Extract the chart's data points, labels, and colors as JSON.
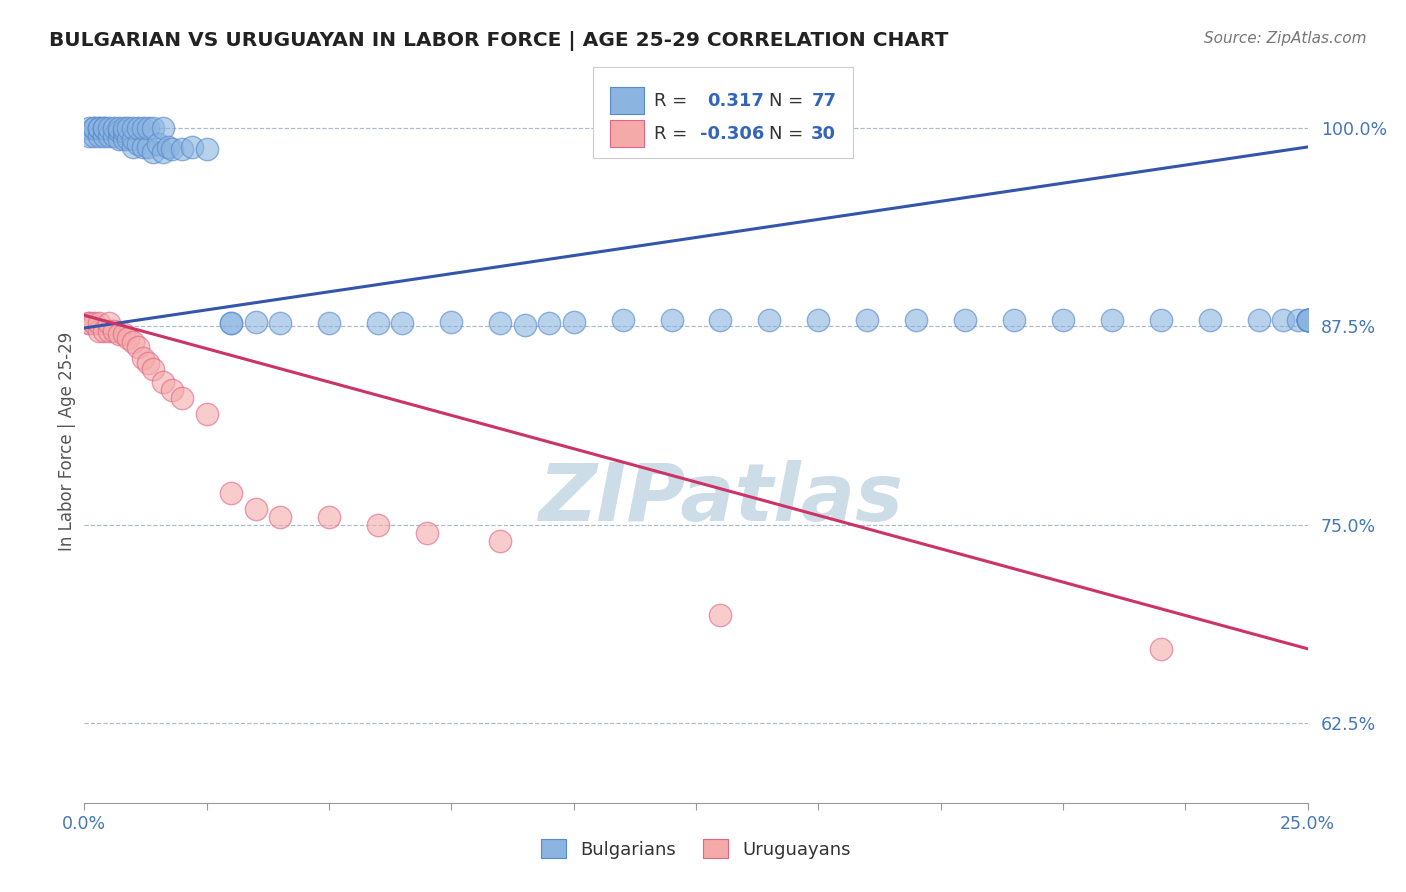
{
  "title": "BULGARIAN VS URUGUAYAN IN LABOR FORCE | AGE 25-29 CORRELATION CHART",
  "source": "Source: ZipAtlas.com",
  "ylabel": "In Labor Force | Age 25-29",
  "xlim": [
    0.0,
    0.25
  ],
  "ylim": [
    0.575,
    1.03
  ],
  "yticks": [
    0.625,
    0.75,
    0.875,
    1.0
  ],
  "ytick_labels": [
    "62.5%",
    "75.0%",
    "87.5%",
    "100.0%"
  ],
  "xticks": [
    0.0,
    0.025,
    0.05,
    0.075,
    0.1,
    0.125,
    0.15,
    0.175,
    0.2,
    0.225,
    0.25
  ],
  "xtick_labels": [
    "0.0%",
    "",
    "",
    "",
    "",
    "",
    "",
    "",
    "",
    "",
    "25.0%"
  ],
  "r_bulgarian": 0.317,
  "n_bulgarian": 77,
  "r_uruguayan": -0.306,
  "n_uruguayan": 30,
  "blue_fill": "#8BB4E0",
  "blue_edge": "#5588CC",
  "pink_fill": "#F5AAAA",
  "pink_edge": "#DD6688",
  "blue_line": "#3355AA",
  "pink_line": "#CC3366",
  "title_color": "#222222",
  "ylabel_color": "#555555",
  "tick_color": "#4477BB",
  "grid_color": "#AABBCC",
  "watermark_color": "#CCDDE8",
  "bg_color": "#ffffff",
  "bg_line_color": "#888888",
  "legend_box_color": "#CCCCCC",
  "legend_text_color": "#333333",
  "legend_val_color": "#3366BB",
  "bg_x": [
    0.001,
    0.001,
    0.002,
    0.002,
    0.002,
    0.003,
    0.003,
    0.003,
    0.004,
    0.004,
    0.004,
    0.005,
    0.005,
    0.006,
    0.006,
    0.007,
    0.007,
    0.007,
    0.008,
    0.008,
    0.008,
    0.009,
    0.009,
    0.01,
    0.01,
    0.01,
    0.011,
    0.011,
    0.012,
    0.012,
    0.013,
    0.013,
    0.014,
    0.014,
    0.015,
    0.016,
    0.016,
    0.017,
    0.018,
    0.02,
    0.022,
    0.025,
    0.03,
    0.03,
    0.035,
    0.04,
    0.05,
    0.06,
    0.065,
    0.075,
    0.085,
    0.09,
    0.095,
    0.1,
    0.11,
    0.12,
    0.13,
    0.14,
    0.15,
    0.16,
    0.17,
    0.18,
    0.19,
    0.2,
    0.21,
    0.22,
    0.23,
    0.24,
    0.245,
    0.248,
    0.25,
    0.25,
    0.25,
    0.25,
    0.25,
    0.25,
    0.25
  ],
  "bg_y": [
    0.995,
    1.0,
    0.995,
    1.0,
    1.0,
    0.995,
    1.0,
    1.0,
    0.995,
    1.0,
    1.0,
    0.995,
    1.0,
    0.995,
    1.0,
    0.993,
    0.998,
    1.0,
    0.993,
    0.998,
    1.0,
    0.993,
    1.0,
    0.988,
    0.993,
    1.0,
    0.99,
    1.0,
    0.988,
    1.0,
    0.988,
    1.0,
    0.985,
    1.0,
    0.99,
    0.985,
    1.0,
    0.988,
    0.987,
    0.987,
    0.988,
    0.987,
    0.877,
    0.877,
    0.878,
    0.877,
    0.877,
    0.877,
    0.877,
    0.878,
    0.877,
    0.876,
    0.877,
    0.878,
    0.879,
    0.879,
    0.879,
    0.879,
    0.879,
    0.879,
    0.879,
    0.879,
    0.879,
    0.879,
    0.879,
    0.879,
    0.879,
    0.879,
    0.879,
    0.879,
    0.879,
    0.879,
    0.879,
    0.879,
    0.879,
    0.879,
    0.879
  ],
  "uy_x": [
    0.001,
    0.001,
    0.002,
    0.003,
    0.003,
    0.004,
    0.005,
    0.005,
    0.006,
    0.007,
    0.008,
    0.009,
    0.01,
    0.011,
    0.012,
    0.013,
    0.014,
    0.016,
    0.018,
    0.02,
    0.025,
    0.03,
    0.035,
    0.04,
    0.05,
    0.06,
    0.07,
    0.085,
    0.13,
    0.22
  ],
  "uy_y": [
    0.877,
    0.877,
    0.877,
    0.872,
    0.877,
    0.872,
    0.872,
    0.877,
    0.872,
    0.87,
    0.87,
    0.868,
    0.865,
    0.862,
    0.855,
    0.852,
    0.848,
    0.84,
    0.835,
    0.83,
    0.82,
    0.77,
    0.76,
    0.755,
    0.755,
    0.75,
    0.745,
    0.74,
    0.693,
    0.672
  ],
  "bg_line_x": [
    0.0,
    0.25
  ],
  "bg_line_y": [
    0.874,
    0.988
  ],
  "uy_line_x": [
    0.0,
    0.25
  ],
  "uy_line_y": [
    0.882,
    0.672
  ]
}
